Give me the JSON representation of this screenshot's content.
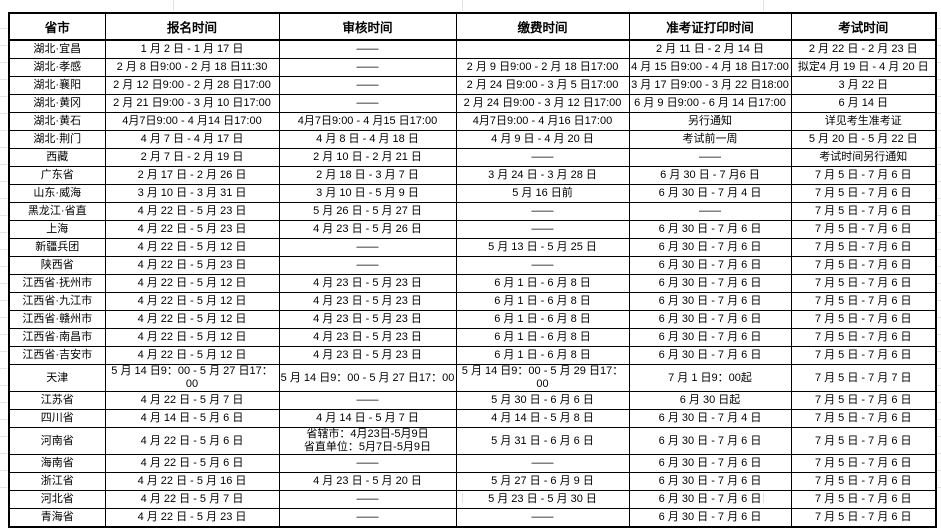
{
  "colors": {
    "table_border": "#000000",
    "text": "#000000",
    "background": "#ffffff",
    "margin_grid": "#e3e3e3"
  },
  "table": {
    "columns": [
      "省市",
      "报名时间",
      "审核时间",
      "缴费时间",
      "准考证打印时间",
      "考试时间"
    ],
    "column_keys": [
      "region",
      "apply",
      "review",
      "pay",
      "print",
      "exam"
    ],
    "empty_marker": "——",
    "rows": [
      {
        "cells": [
          "湖北·宜昌",
          "1 月 2 日 - 1 月 17 日",
          "——",
          "",
          "2 月 11 日 - 2 月 14 日",
          "2 月 22 日 - 2 月 23 日"
        ]
      },
      {
        "cells": [
          "湖北·孝感",
          "2 月 8 日9:00 - 2 月 18 日11:30",
          "——",
          "2 月 9 日9:00 - 2 月 18 日17:00",
          "4 月 15 日9:00 - 4 月 18 日17:00",
          "拟定4 月 19 日 - 4 月 20 日"
        ]
      },
      {
        "cells": [
          "湖北·襄阳",
          "2 月 12 日9:00 - 2 月 28 日17:00",
          "——",
          "2 月 24 日9:00 - 3 月 5 日17:00",
          "3 月 17 日9:00 - 3 月 22 日18:00",
          "3 月 22 日"
        ]
      },
      {
        "cells": [
          "湖北·黄冈",
          "2 月 21 日9:00 - 3 月 10 日17:00",
          "——",
          "2 月 24 日9:00 - 3 月 12 日17:00",
          "6 月 9 日9:00 - 6 月 14 日17:00",
          "6 月 14 日"
        ]
      },
      {
        "cells": [
          "湖北·黄石",
          "4月7日9:00 - 4 月14 日17:00",
          "4月7日9:00 - 4 月15 日17:00",
          "4月7日9:00 - 4 月16 日17:00",
          "另行通知",
          "详见考生准考证"
        ]
      },
      {
        "cells": [
          "湖北·荆门",
          "4 月 7 日 - 4 月 17 日",
          "4 月 8 日 - 4 月 18 日",
          "4 月 9 日 - 4 月 20 日",
          "考试前一周",
          "5 月 20 日 - 5 月 22 日"
        ]
      },
      {
        "cells": [
          "西藏",
          "2 月 7 日 - 2 月 19 日",
          "2 月 10 日 - 2 月 21 日",
          "——",
          "——",
          "考试时间另行通知"
        ]
      },
      {
        "cells": [
          "广东省",
          "2 月 17 日 - 2 月 26 日",
          "2 月 18 日 - 3 月 7 日",
          "3 月 24 日 - 3 月 28 日",
          "6 月 30 日 - 7 月6 日",
          "7 月 5 日 - 7 月 6 日"
        ]
      },
      {
        "cells": [
          "山东·威海",
          "3 月 10 日 - 3 月 31 日",
          "3 月 10 日 - 5 月 9 日",
          "5 月 16 日前",
          "6 月 30 日 - 7 月 4 日",
          "7 月 5 日 - 7 月 6 日"
        ]
      },
      {
        "cells": [
          "黑龙江·省直",
          "4 月 22 日 - 5 月 23 日",
          "5 月 26 日 - 5 月 27 日",
          "——",
          "——",
          "7 月 5 日 - 7 月 6 日"
        ]
      },
      {
        "cells": [
          "上海",
          "4 月 22 日 - 5 月 23 日",
          "4 月 23 日 - 5 月 26 日",
          "——",
          "6 月 30 日 - 7 月 6 日",
          "7 月 5 日 - 7 月 6 日"
        ]
      },
      {
        "cells": [
          "新疆兵团",
          "4 月 22 日 - 5 月 12 日",
          "——",
          "5 月 13 日 - 5 月 25 日",
          "6 月 30 日 - 7 月 6 日",
          "7 月 5 日 - 7 月 6 日"
        ]
      },
      {
        "cells": [
          "陕西省",
          "4 月 22 日 - 5 月 23 日",
          "——",
          "——",
          "6 月 30 日 - 7 月 6 日",
          "7 月 5 日 - 7 月 6 日"
        ]
      },
      {
        "cells": [
          "江西省·抚州市",
          "4 月 22 日 - 5 月 12 日",
          "4 月 23 日 - 5 月 23 日",
          "6 月 1 日 - 6 月 8 日",
          "6 月 30 日 - 7 月 6 日",
          "7 月 5 日 - 7 月 6 日"
        ]
      },
      {
        "cells": [
          "江西省·九江市",
          "4 月 22 日 - 5 月 12 日",
          "4 月 23 日 - 5 月 23 日",
          "6 月 1 日 - 6 月 8 日",
          "6 月 30 日 - 7 月 6 日",
          "7 月 5 日 - 7 月 6 日"
        ]
      },
      {
        "cells": [
          "江西省·赣州市",
          "4 月 22 日 - 5 月 12 日",
          "4 月 23 日 - 5 月 23 日",
          "6 月 1 日 - 6 月 8 日",
          "6 月 30 日 - 7 月 6 日",
          "7 月 5 日 - 7 月 6 日"
        ]
      },
      {
        "cells": [
          "江西省·南昌市",
          "4 月 22 日 - 5 月 12 日",
          "4 月 23 日 - 5 月 23 日",
          "6 月 1 日 - 6 月 8 日",
          "6 月 30 日 - 7 月 6 日",
          "7 月 5 日 - 7 月 6 日"
        ]
      },
      {
        "cells": [
          "江西省·吉安市",
          "4 月 22 日 - 5 月 12 日",
          "4 月 23 日 - 5 月 23 日",
          "6 月 1 日 - 6 月 8 日",
          "6 月 30 日 - 7 月 6 日",
          "7 月 5 日 - 7 月 6 日"
        ]
      },
      {
        "cells": [
          "天津",
          "5 月 14 日9：00 - 5 月 27 日17：00",
          "5 月 14 日9：00 - 5 月 27 日17：00",
          "5 月 14 日9：00 - 5 月 29 日17：00",
          "7 月 1 日9：00起",
          "7 月 5 日 - 7 月 7 日"
        ]
      },
      {
        "cells": [
          "江苏省",
          "4 月 22 日 - 5 月 7 日",
          "——",
          "5 月 30 日 - 6 月 6 日",
          "6 月 30 日起",
          "7 月 5 日 - 7 月 6 日"
        ]
      },
      {
        "cells": [
          "四川省",
          "4 月 14 日 - 5 月 6 日",
          "4 月 14 日 - 5 月 7 日",
          "4 月 14 日 - 5 月 8 日",
          "6 月 30 日 - 7 月 4 日",
          "7 月 5 日 - 7 月 6 日"
        ]
      },
      {
        "cells": [
          "河南省",
          "4 月 22 日 - 5 月 6 日",
          "省辖市：4月23日-5月9日\n省直单位：5月7日-5月9日",
          "5 月 31 日 - 6 月 6 日",
          "6 月 30 日 - 7 月 6 日",
          "7 月 5 日 - 7 月 6 日"
        ]
      },
      {
        "cells": [
          "海南省",
          "4 月 22 日 - 5 月 6 日",
          "——",
          "——",
          "6 月 30 日 - 7 月 6 日",
          "7 月 5 日 - 7 月 6 日"
        ]
      },
      {
        "cells": [
          "浙江省",
          "4 月 22 日 - 5 月 16 日",
          "4 月 23 日 - 5 月 20 日",
          "5 月 27 日 - 6 月 9 日",
          "6 月 30 日 - 7 月 6 日",
          "7 月 5 日 - 7 月 6 日"
        ]
      },
      {
        "cells": [
          "河北省",
          "4 月 22 日 - 5 月 7 日",
          "——",
          "5 月 23 日 - 5 月 30 日",
          "6 月 30 日 - 7 月 6 日",
          "7 月 5 日 - 7 月 6 日"
        ]
      },
      {
        "cells": [
          "青海省",
          "4 月 22 日 - 5 月 23 日",
          "——",
          "——",
          "6 月 30 日 - 7 月 6 日",
          "7 月 5 日 - 7 月 6 日"
        ]
      }
    ]
  }
}
